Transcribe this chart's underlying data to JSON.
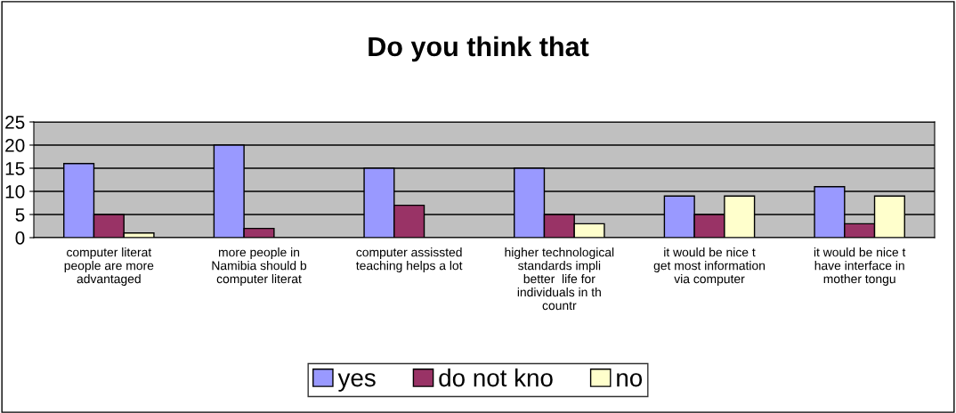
{
  "chart_data": {
    "type": "bar",
    "title": "Do you think that",
    "categories": [
      "computer literat\npeople are more\nadvantaged",
      "more people in\nNamibia should b\ncomputer literat",
      "computer assissted\nteaching helps a lot",
      "higher technological\nstandards impli\nbetter  life for\nindividuals in th\ncountr",
      "it would be nice t\nget most information\nvia computer",
      "it would be nice t\nhave interface in\nmother tongu"
    ],
    "series": [
      {
        "name": "yes",
        "color": "#9999ff",
        "values": [
          16,
          20,
          15,
          15,
          9,
          11
        ]
      },
      {
        "name": "do not kno",
        "color": "#993366",
        "values": [
          5,
          2,
          7,
          5,
          5,
          3
        ]
      },
      {
        "name": "no",
        "color": "#ffffcc",
        "values": [
          1,
          null,
          null,
          3,
          9,
          9
        ]
      }
    ],
    "ylim": [
      0,
      25
    ],
    "yticks": [
      0,
      5,
      10,
      15,
      20,
      25
    ],
    "grid": "y",
    "legend": "bottom"
  }
}
